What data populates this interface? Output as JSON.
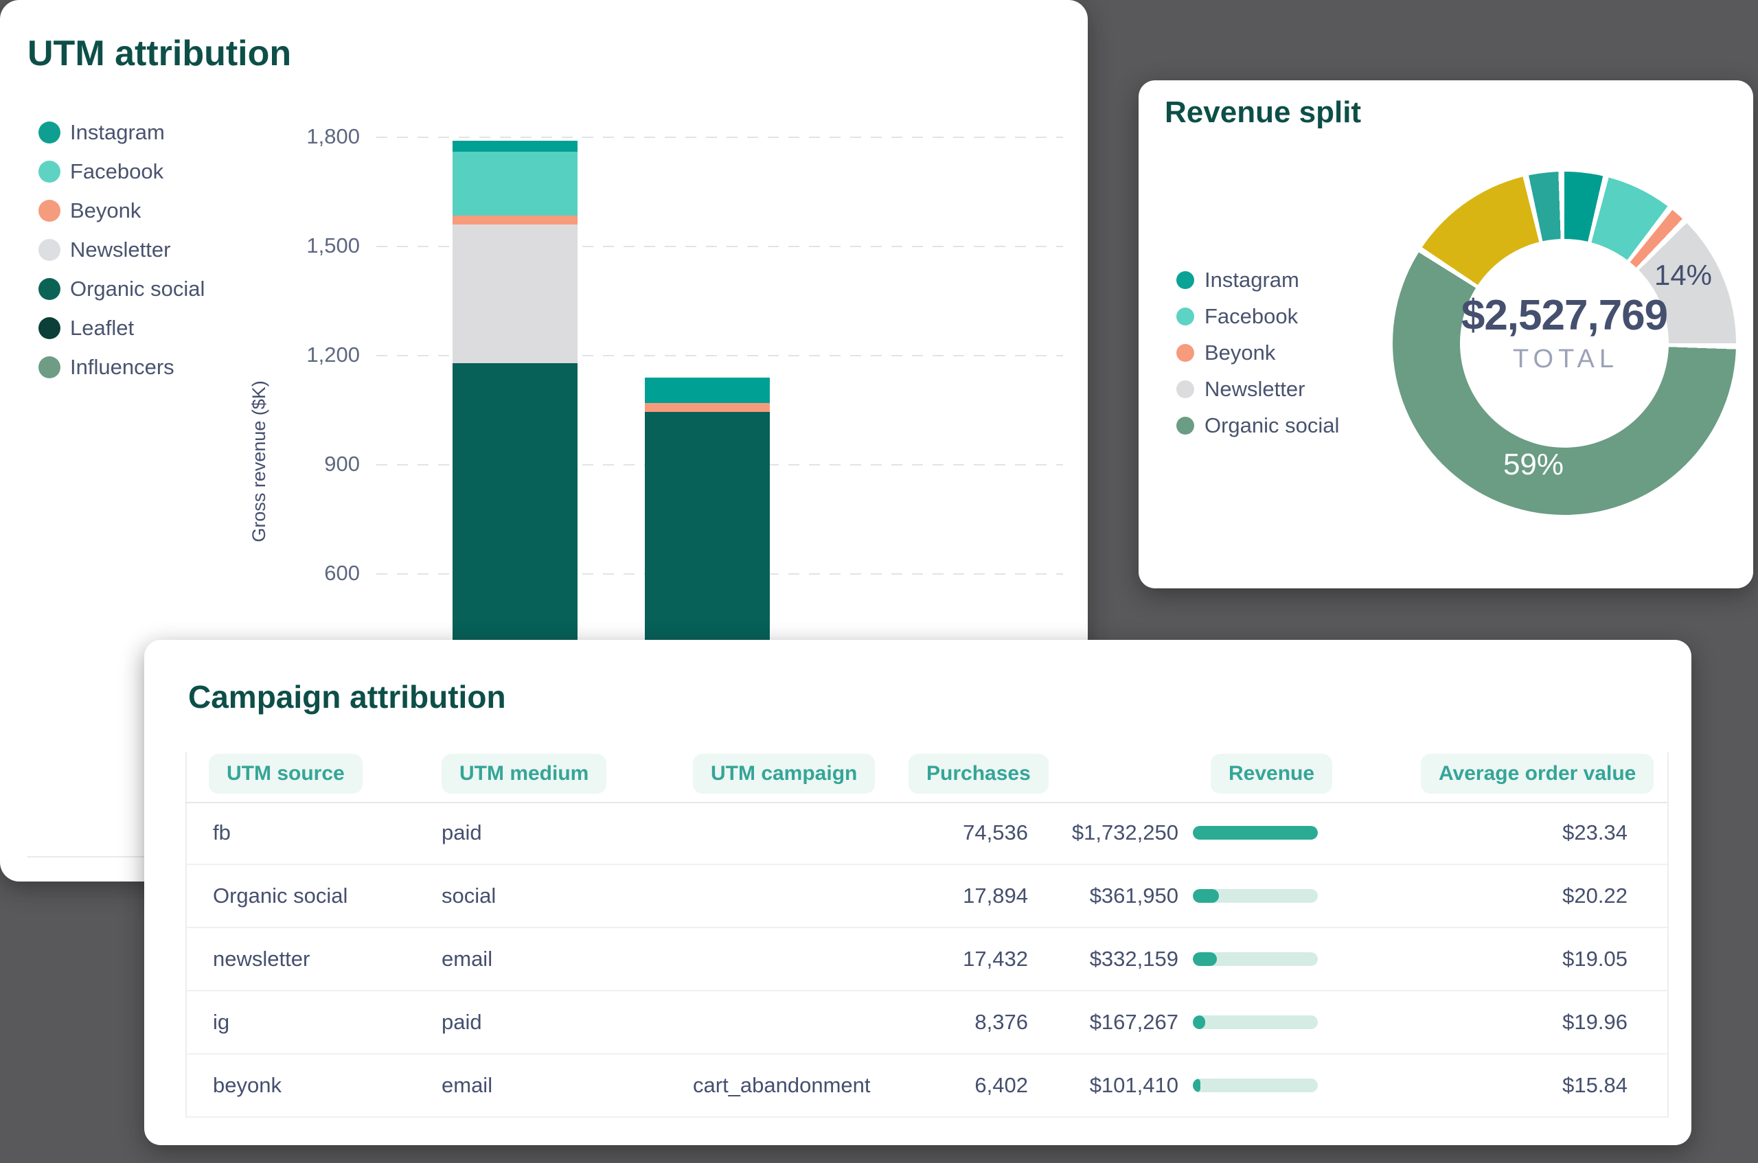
{
  "page": {
    "background_color": "#59595b",
    "card_color": "#ffffff",
    "accent_teal": "#2bab93",
    "title_color": "#0d4f48",
    "text_color": "#454f6e"
  },
  "utm_card": {
    "title": "UTM attribution",
    "legend": [
      {
        "label": "Instagram",
        "color": "#0f9f92"
      },
      {
        "label": "Facebook",
        "color": "#5fd3c3"
      },
      {
        "label": "Beyonk",
        "color": "#f59c7d"
      },
      {
        "label": "Newsletter",
        "color": "#dcdee2"
      },
      {
        "label": "Organic social",
        "color": "#0b6355"
      },
      {
        "label": "Leaflet",
        "color": "#0b3f38"
      },
      {
        "label": "Influencers",
        "color": "#6e9c85"
      }
    ],
    "y_axis_label": "Gross revenue ($K)",
    "y_ticks": [
      {
        "label": "1,800",
        "value": 1800
      },
      {
        "label": "1,500",
        "value": 1500
      },
      {
        "label": "1,200",
        "value": 1200
      },
      {
        "label": "900",
        "value": 900
      },
      {
        "label": "600",
        "value": 600
      }
    ]
  },
  "chart_data": [
    {
      "type": "bar",
      "stacked": true,
      "title": "UTM attribution",
      "xlabel": "",
      "ylabel": "Gross revenue ($K)",
      "ylim": [
        0,
        1800
      ],
      "grid": "horizontal dashed",
      "legend_position": "left",
      "categories": [
        "",
        ""
      ],
      "series": [
        {
          "name": "Organic social",
          "color": "#076158",
          "values": [
            1180,
            1045
          ]
        },
        {
          "name": "Newsletter",
          "color": "#dcdcde",
          "values": [
            380,
            0
          ]
        },
        {
          "name": "Beyonk",
          "color": "#f79b7d",
          "values": [
            25,
            25
          ]
        },
        {
          "name": "Facebook",
          "color": "#56d0c0",
          "values": [
            175,
            0
          ]
        },
        {
          "name": "Instagram",
          "color": "#00a094",
          "values": [
            30,
            70
          ]
        }
      ],
      "note": "values in $K estimated from gridlines; lower part of bars hidden behind overlapping card"
    },
    {
      "type": "pie",
      "donut": true,
      "title": "Revenue split",
      "center_value": "$2,527,769",
      "center_label": "TOTAL",
      "legend_position": "left",
      "segments": [
        {
          "label": "Instagram",
          "color": "#009e90",
          "start_deg": 0,
          "end_deg": 13,
          "pct": 4
        },
        {
          "label": "Facebook",
          "color": "#57d1c1",
          "start_deg": 15,
          "end_deg": 37,
          "pct": 6
        },
        {
          "label": "Beyonk",
          "color": "#f7977a",
          "start_deg": 39,
          "end_deg": 43.5,
          "pct": 1
        },
        {
          "label": "Newsletter",
          "color": "#d9dadc",
          "start_deg": 45.5,
          "end_deg": 90,
          "pct": 14,
          "pct_label": "14%"
        },
        {
          "label": "Organic social",
          "color": "#6b9c84",
          "start_deg": 92,
          "end_deg": 302,
          "pct": 59,
          "pct_label": "59%"
        },
        {
          "label": "",
          "color": "#d8b512",
          "start_deg": 304,
          "end_deg": 346,
          "pct": 12
        },
        {
          "label": "",
          "color": "#28a69a",
          "start_deg": 348,
          "end_deg": 358,
          "pct": 3
        }
      ]
    }
  ],
  "revenue_card": {
    "title": "Revenue split",
    "total_value": "$2,527,769",
    "total_label": "TOTAL",
    "legend": [
      {
        "label": "Instagram",
        "color": "#0aa396"
      },
      {
        "label": "Facebook",
        "color": "#5cd3c3"
      },
      {
        "label": "Beyonk",
        "color": "#f79b7d"
      },
      {
        "label": "Newsletter",
        "color": "#dcdcde"
      },
      {
        "label": "Organic social",
        "color": "#6b9c84"
      }
    ],
    "callouts": [
      {
        "text": "14%"
      },
      {
        "text": "59%"
      }
    ]
  },
  "campaign_card": {
    "title": "Campaign attribution",
    "columns": [
      "UTM source",
      "UTM medium",
      "UTM campaign",
      "Purchases",
      "Revenue",
      "Average order value"
    ],
    "bar_fill_color": "#2bab93",
    "bar_track_color": "#d5ece5",
    "rows": [
      {
        "source": "fb",
        "medium": "paid",
        "campaign": "",
        "purchases": "74,536",
        "revenue": "$1,732,250",
        "revenue_bar_pct": 100,
        "aov": "$23.34"
      },
      {
        "source": "Organic social",
        "medium": "social",
        "campaign": "",
        "purchases": "17,894",
        "revenue": "$361,950",
        "revenue_bar_pct": 21,
        "aov": "$20.22"
      },
      {
        "source": "newsletter",
        "medium": "email",
        "campaign": "",
        "purchases": "17,432",
        "revenue": "$332,159",
        "revenue_bar_pct": 19,
        "aov": "$19.05"
      },
      {
        "source": "ig",
        "medium": "paid",
        "campaign": "",
        "purchases": "8,376",
        "revenue": "$167,267",
        "revenue_bar_pct": 10,
        "aov": "$19.96"
      },
      {
        "source": "beyonk",
        "medium": "email",
        "campaign": "cart_abandonment",
        "purchases": "6,402",
        "revenue": "$101,410",
        "revenue_bar_pct": 6,
        "aov": "$15.84"
      }
    ]
  }
}
